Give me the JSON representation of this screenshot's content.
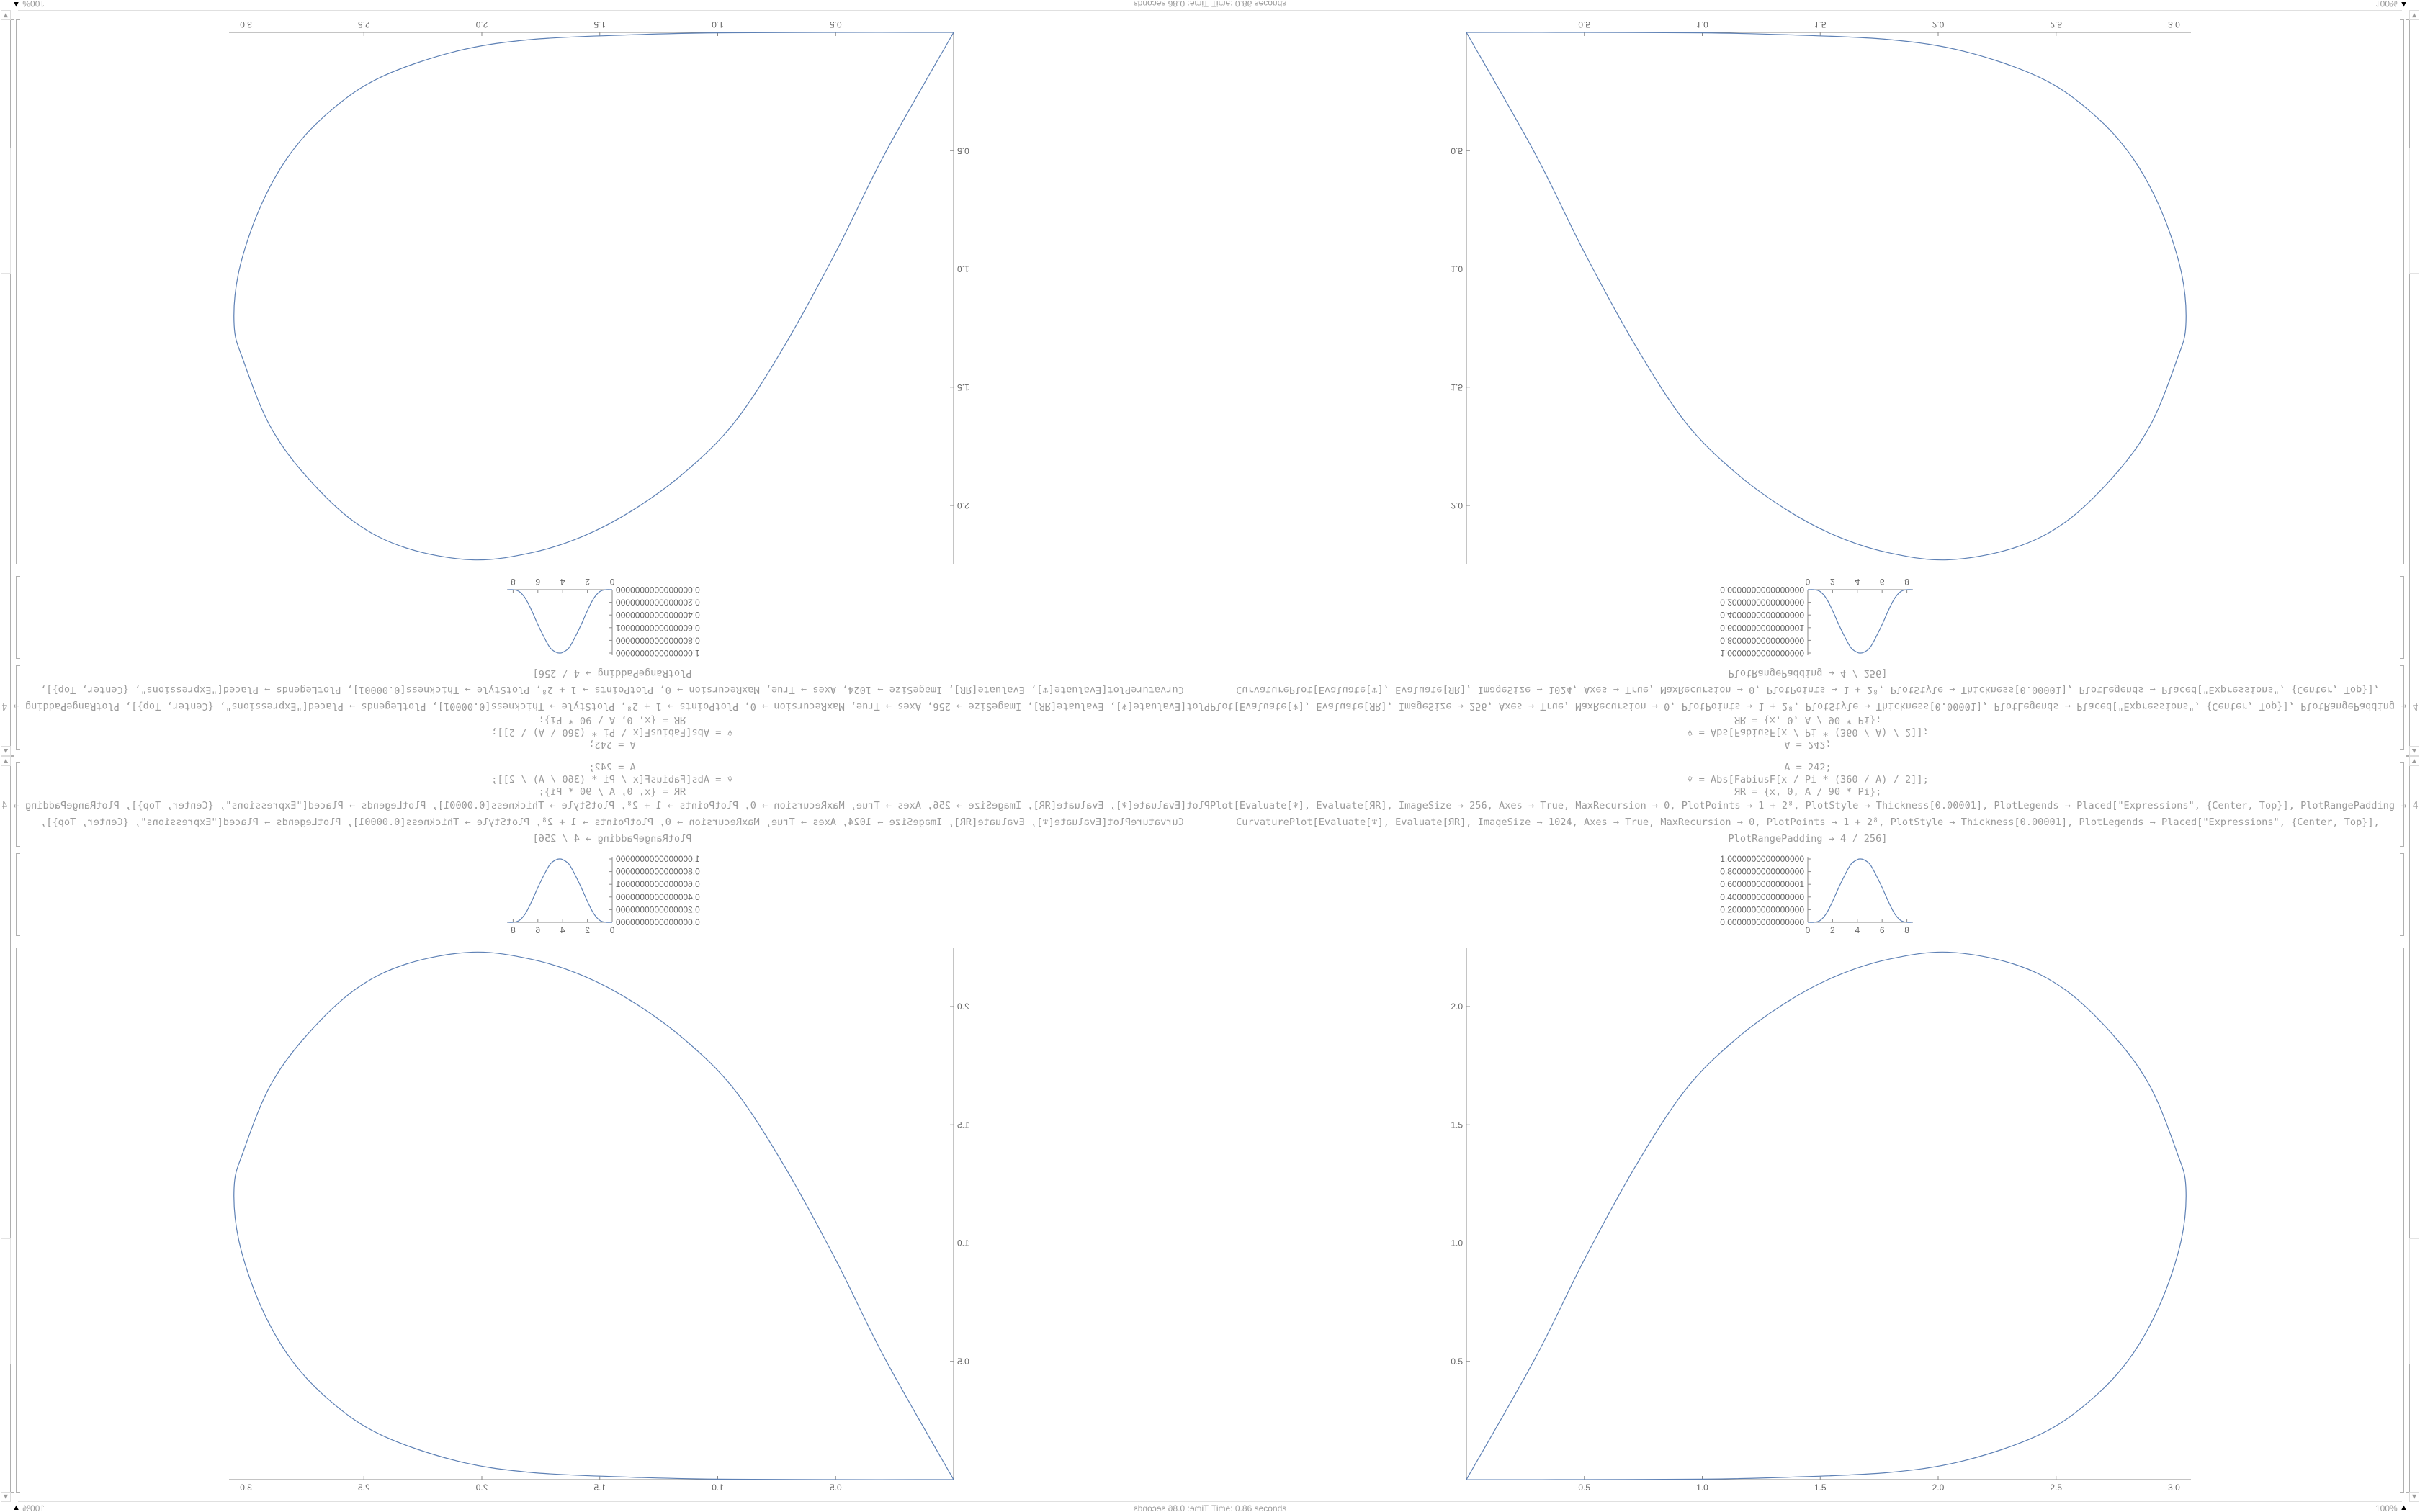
{
  "notebook": {
    "input_lines": [
      "A = 242;",
      "♆ = Abs[FabiusF[x / Pi * (360 / A) / 2]];",
      "ЯR = {x, 0, A / 90 * Pi};",
      "Plot[Evaluate[♆], Evaluate[ЯR], ImageSize → 256, Axes → True, MaxRecursion → 0, PlotPoints → 1 + 2⁸, PlotStyle → Thickness[0.00001], PlotLegends → Placed[\"Expressions\", {Center, Top}], PlotRangePadding → 4 / 256]",
      "CurvaturePlot[Evaluate[♆], Evaluate[ЯR], ImageSize → 1024, Axes → True, MaxRecursion → 0, PlotPoints → 1 + 2⁸, PlotStyle → Thickness[0.00001], PlotLegends → Placed[\"Expressions\", {Center, Top}],",
      "PlotRangePadding → 4 / 256]"
    ]
  },
  "status_bar": {
    "timing": "Time: 0.86 seconds",
    "zoom": "100%",
    "zoom_arrow_icon": "triangle-up-icon"
  },
  "scrollbar": {
    "up_icon": "triangle-up-icon",
    "down_icon": "triangle-down-icon"
  },
  "colors": {
    "curve": "#5e81b5",
    "axis": "#888888",
    "code_text": "#9a9a9a"
  },
  "chart_data": [
    {
      "type": "line",
      "x": [
        0,
        0.5,
        1,
        1.5,
        2,
        2.5,
        3,
        3.5,
        4,
        4.22,
        4.5,
        5,
        5.5,
        6,
        6.5,
        7,
        7.5,
        8,
        8.45
      ],
      "y": [
        0,
        0,
        0.03,
        0.14,
        0.33,
        0.55,
        0.75,
        0.92,
        0.99,
        1,
        0.99,
        0.92,
        0.75,
        0.55,
        0.33,
        0.14,
        0.03,
        0,
        0
      ],
      "xlim": [
        0,
        8.45
      ],
      "ylim": [
        0,
        1
      ],
      "x_ticks": [
        "0",
        "2",
        "4",
        "6",
        "8"
      ],
      "x_tick_values": [
        0,
        2,
        4,
        6,
        8
      ],
      "y_ticks": [
        "0.0000000000000000",
        "0.2000000000000000",
        "0.4000000000000000",
        "0.6000000000000001",
        "0.8000000000000000",
        "1.0000000000000000"
      ],
      "y_tick_values": [
        0,
        0.2,
        0.4,
        0.6,
        0.8,
        1.0
      ],
      "grid": false
    },
    {
      "type": "line",
      "x": [
        0,
        0.29,
        0.5,
        0.72,
        0.93,
        1.14,
        1.36,
        1.57,
        1.79,
        2.04,
        2.32,
        2.54,
        2.75,
        2.9,
        3.01,
        3.05,
        3.03,
        2.94,
        2.81,
        2.64,
        2.43,
        2.11,
        1.79,
        1.36,
        1.0,
        0.5,
        0
      ],
      "y": [
        0,
        0.51,
        0.93,
        1.33,
        1.65,
        1.86,
        2.02,
        2.13,
        2.2,
        2.23,
        2.18,
        2.07,
        1.87,
        1.66,
        1.39,
        1.24,
        1.01,
        0.74,
        0.51,
        0.33,
        0.19,
        0.08,
        0.03,
        0.01,
        0.002,
        0,
        0
      ],
      "xlim": [
        0,
        3.07
      ],
      "ylim": [
        0,
        2.27
      ],
      "x_ticks": [
        "0.5",
        "1.0",
        "1.5",
        "2.0",
        "2.5",
        "3.0"
      ],
      "x_tick_values": [
        0.5,
        1.0,
        1.5,
        2.0,
        2.5,
        3.0
      ],
      "y_ticks": [
        "0.5",
        "1.0",
        "1.5",
        "2.0"
      ],
      "y_tick_values": [
        0.5,
        1.0,
        1.5,
        2.0
      ],
      "grid": false
    }
  ]
}
